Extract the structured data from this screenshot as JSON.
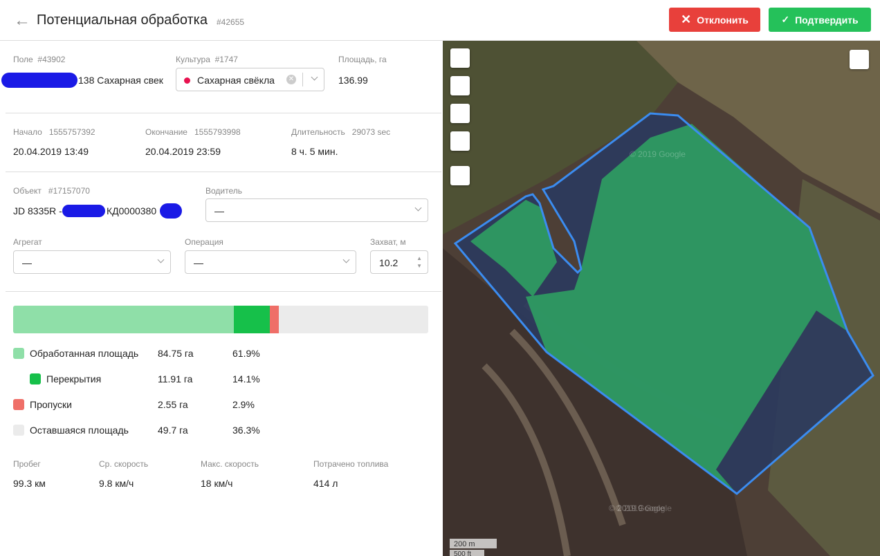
{
  "header": {
    "title": "Потенциальная обработка",
    "id": "#42655",
    "reject": "Отклонить",
    "confirm": "Подтвердить"
  },
  "field": {
    "label": "Поле",
    "id": "#43902",
    "value": "138 Сахарная свек"
  },
  "crop": {
    "label": "Культура",
    "id": "#1747",
    "value": "Сахарная свёкла"
  },
  "area": {
    "label": "Площадь, га",
    "value": "136.99"
  },
  "start": {
    "label": "Начало",
    "ts": "1555757392",
    "value": "20.04.2019 13:49"
  },
  "end": {
    "label": "Окончание",
    "ts": "1555793998",
    "value": "20.04.2019 23:59"
  },
  "duration": {
    "label": "Длительность",
    "raw": "29073 sec",
    "value": "8 ч. 5 мин."
  },
  "object": {
    "label": "Объект",
    "id": "#17157070",
    "value_prefix": "JD 8335R - ",
    "value_suffix": "КД0000380"
  },
  "driver": {
    "label": "Водитель",
    "value": "—"
  },
  "implement": {
    "label": "Агрегат",
    "value": "—"
  },
  "operation": {
    "label": "Операция",
    "value": "—"
  },
  "width": {
    "label": "Захват, м",
    "value": "10.2"
  },
  "coverage": [
    {
      "name": "Обработанная площадь",
      "area": "84.75 га",
      "value": 61.9,
      "value_label": "61.9%",
      "color": "#8fdfa8"
    },
    {
      "name": "Перекрытия",
      "area": "11.91 га",
      "value": 14.1,
      "value_label": "14.1%",
      "color": "#16c04a"
    },
    {
      "name": "Пропуски",
      "area": "2.55 га",
      "value": 2.9,
      "value_label": "2.9%",
      "color": "#ef6f68"
    },
    {
      "name": "Оставшаяся площадь",
      "area": "49.7 га",
      "value": 36.3,
      "value_label": "36.3%",
      "color": "#ebebeb"
    }
  ],
  "stats": [
    {
      "label": "Пробег",
      "value": "99.3 км"
    },
    {
      "label": "Ср. скорость",
      "value": "9.8 км/ч"
    },
    {
      "label": "Макс. скорость",
      "value": "18 км/ч"
    },
    {
      "label": "Потрачено топлива",
      "value": "414 л"
    }
  ],
  "map": {
    "scale_m": "200 m",
    "scale_ft": "500 ft",
    "copyright": "© 2019 Google"
  }
}
